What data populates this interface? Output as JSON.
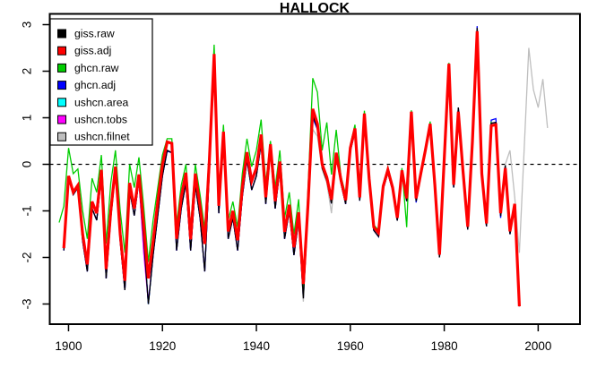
{
  "window": {
    "background": "#ffffff"
  },
  "chart_data": {
    "type": "line",
    "title": "HALLOCK",
    "xlabel": "",
    "ylabel": "",
    "xlim": [
      1896.0,
      2008.9
    ],
    "ylim": [
      -3.433,
      3.231
    ],
    "x_ticks": [
      1900,
      1920,
      1940,
      1960,
      1980,
      2000
    ],
    "y_ticks": [
      -3,
      -2,
      -1,
      0,
      1,
      2,
      3
    ],
    "grid": false,
    "zero_line": true,
    "zero_line_style": "dashed",
    "legend_position": "topleft",
    "frame_color": "#000000",
    "series": [
      {
        "name": "giss.raw",
        "color": "#000000",
        "line_width": 1.3,
        "z": 6,
        "start_year": 1899,
        "values": [
          -1.85,
          -0.3,
          -0.65,
          -0.5,
          -1.65,
          -2.3,
          -0.95,
          -1.2,
          -0.25,
          -2.45,
          -1.15,
          -0.15,
          -1.65,
          -2.7,
          -0.55,
          -1.1,
          -0.35,
          -1.6,
          -3.0,
          -1.95,
          -1.1,
          -0.25,
          0.3,
          0.25,
          -1.85,
          -0.95,
          -0.4,
          -1.85,
          -0.45,
          -1.15,
          -2.3,
          -0.1,
          2.1,
          -1.05,
          0.6,
          -1.6,
          -1.15,
          -1.85,
          -0.7,
          0.1,
          -0.55,
          -0.25,
          0.45,
          -0.85,
          0.28,
          -0.95,
          -0.1,
          -1.6,
          -1.0,
          -1.95,
          -1.2,
          -2.88,
          -0.95,
          1.05,
          0.78,
          -0.08,
          -0.36,
          -0.84,
          0.18,
          -0.4,
          -0.85,
          0.28,
          0.7,
          -0.78,
          1.02,
          -0.38,
          -1.42,
          -1.55,
          -0.53,
          -0.18,
          -0.56,
          -1.21,
          -0.19,
          -0.79,
          1.07,
          -0.79,
          -0.26,
          0.25,
          0.81,
          -0.5,
          -2.0,
          0.06,
          2.1,
          -0.5,
          1.22,
          -0.2,
          -1.4,
          0.42,
          2.93,
          -0.26,
          -1.33,
          0.88,
          0.9,
          -1.11,
          -0.02,
          -1.5,
          -0.91,
          -3.05
        ]
      },
      {
        "name": "giss.adj",
        "color": "#FF0000",
        "line_width": 3.2,
        "z": 7,
        "start_year": 1899,
        "values": [
          -1.8,
          -0.25,
          -0.6,
          -0.45,
          -1.5,
          -2.15,
          -0.8,
          -1.05,
          -0.12,
          -2.25,
          -1.0,
          -0.05,
          -1.5,
          -2.5,
          -0.4,
          -0.95,
          -0.22,
          -1.3,
          -2.45,
          -1.65,
          -0.8,
          0.0,
          0.48,
          0.45,
          -1.6,
          -0.7,
          -0.18,
          -1.61,
          -0.2,
          -0.9,
          -1.71,
          0.1,
          2.37,
          -0.89,
          0.7,
          -1.44,
          -1.0,
          -1.63,
          -0.5,
          0.26,
          -0.36,
          -0.08,
          0.64,
          -0.71,
          0.43,
          -0.79,
          0.06,
          -1.45,
          -0.87,
          -1.78,
          -1.03,
          -2.57,
          -0.83,
          1.19,
          0.87,
          0.0,
          -0.28,
          -0.76,
          0.25,
          -0.33,
          -0.77,
          0.35,
          0.77,
          -0.71,
          1.09,
          -0.31,
          -1.35,
          -1.47,
          -0.47,
          -0.12,
          -0.5,
          -1.15,
          -0.13,
          -0.73,
          1.13,
          -0.73,
          -0.2,
          0.31,
          0.87,
          -0.44,
          -1.94,
          0.12,
          2.16,
          -0.44,
          1.13,
          -0.14,
          -1.34,
          0.48,
          2.86,
          -0.2,
          -1.27,
          0.83,
          0.85,
          -1.05,
          -0.08,
          -1.44,
          -0.85,
          -3.05
        ]
      },
      {
        "name": "ghcn.raw",
        "color": "#00CD00",
        "line_width": 1.3,
        "z": 5,
        "start_year": 1898,
        "values": [
          -1.25,
          -0.9,
          0.35,
          -0.2,
          -0.1,
          -1.0,
          -1.6,
          -0.3,
          -0.6,
          0.2,
          -1.7,
          -0.4,
          0.3,
          -1.0,
          -1.9,
          0.0,
          -0.5,
          0.15,
          -0.9,
          -2.1,
          -1.2,
          -0.5,
          0.2,
          0.55,
          0.55,
          -1.3,
          -0.45,
          0.0,
          -1.35,
          0.0,
          -0.65,
          -1.4,
          0.3,
          2.57,
          -0.65,
          0.85,
          -1.2,
          -0.8,
          -1.35,
          -0.2,
          0.55,
          -0.05,
          0.3,
          0.96,
          -0.4,
          0.5,
          -0.5,
          0.3,
          -1.15,
          -0.6,
          -1.5,
          -0.75,
          -2.7,
          -0.5,
          1.85,
          1.55,
          0.3,
          0.9,
          -0.22,
          0.74,
          -0.25,
          -0.65,
          0.42,
          0.85,
          -0.62,
          1.15,
          -0.25,
          -1.3,
          -1.42,
          -0.42,
          -0.06,
          -0.45,
          -1.1,
          -0.08,
          -1.35,
          1.16,
          -0.7,
          -0.17,
          0.34,
          0.92,
          -0.41,
          -1.91,
          0.15,
          2.18,
          -0.41,
          1.16,
          -0.11,
          -1.31,
          0.51,
          2.88,
          -0.17,
          -1.24,
          0.92
        ]
      },
      {
        "name": "ghcn.adj",
        "color": "#0000FF",
        "line_width": 1.3,
        "z": 3,
        "start_year": 1899,
        "values": [
          -1.85,
          -0.3,
          -0.65,
          -0.5,
          -1.65,
          -2.3,
          -0.95,
          -1.2,
          -0.25,
          -2.45,
          -1.15,
          -0.15,
          -1.65,
          -2.7,
          -0.55,
          -1.1,
          -0.35,
          -1.6,
          -3.0,
          -1.95,
          -1.1,
          -0.25,
          0.28,
          0.25,
          -1.85,
          -0.95,
          -0.4,
          -1.85,
          -0.45,
          -1.15,
          -2.3,
          -0.1,
          2.1,
          -1.05,
          0.6,
          -1.6,
          -1.15,
          -1.85,
          -0.7,
          0.1,
          -0.55,
          -0.25,
          0.45,
          -0.85,
          0.28,
          -0.95,
          -0.1,
          -1.6,
          -1.0,
          -1.95,
          -1.2,
          -2.88,
          -0.95,
          1.0,
          0.75,
          -0.08,
          -0.36,
          -0.84,
          0.18,
          -0.4,
          -0.85,
          0.28,
          0.7,
          -0.78,
          1.02,
          -0.38,
          -1.42,
          -1.55,
          -0.53,
          -0.18,
          -0.56,
          -1.21,
          -0.19,
          -0.79,
          1.07,
          -0.82,
          -0.26,
          0.25,
          0.81,
          -0.5,
          -2.0,
          0.06,
          2.1,
          -0.5,
          1.22,
          -0.2,
          -1.4,
          0.42,
          2.97,
          -0.26,
          -1.33,
          0.95,
          0.98,
          -1.15,
          -0.02,
          -1.5,
          -0.91,
          -3.05
        ]
      },
      {
        "name": "ushcn.area",
        "color": "#00FFFF",
        "line_width": 1.3,
        "z": 1,
        "start_year": 1899,
        "values": [
          -1.85,
          -0.3,
          -0.65,
          -0.5,
          -1.65,
          -2.3,
          -0.95,
          -1.2,
          -0.25,
          -2.45,
          -1.15,
          -0.15,
          -1.65,
          -2.7,
          -0.55,
          -1.1,
          -0.35,
          -1.6,
          -3.0,
          -1.95,
          -1.1,
          -0.25,
          0.3,
          0.25,
          -1.85,
          -0.95,
          -0.4,
          -1.85,
          -0.45,
          -1.15,
          -2.3,
          -0.1,
          2.1,
          -1.05,
          0.6,
          -1.6,
          -1.15,
          -1.85,
          -0.7,
          0.1,
          -0.55,
          -0.25,
          0.45,
          -0.85,
          0.28,
          -0.95,
          -0.1,
          -1.6,
          -1.0,
          -1.95,
          -1.2,
          -2.88,
          -0.95,
          1.05,
          0.78,
          -0.08,
          -0.36,
          -0.84,
          0.18,
          -0.4,
          -0.85,
          0.28,
          0.7,
          -0.78,
          1.02,
          -0.38,
          -1.42,
          -1.55,
          -0.53,
          -0.18,
          -0.56,
          -1.21,
          -0.19,
          -0.79,
          1.07,
          -0.79,
          -0.26,
          0.25,
          0.81,
          -0.5,
          -2.0,
          0.06,
          2.1,
          -0.5,
          1.22,
          -0.2,
          -1.4,
          0.42,
          2.93,
          -0.26,
          -1.33,
          0.88,
          0.9,
          -1.11,
          -0.02,
          -1.5,
          -0.91
        ]
      },
      {
        "name": "ushcn.tobs",
        "color": "#FF00FF",
        "line_width": 1.3,
        "z": 2,
        "start_year": 1899,
        "values": [
          -1.85,
          -0.3,
          -0.65,
          -0.5,
          -1.65,
          -2.3,
          -0.95,
          -1.2,
          -0.25,
          -2.45,
          -1.15,
          -0.15,
          -1.65,
          -2.7,
          -0.55,
          -1.1,
          -0.35,
          -1.9,
          -2.95,
          -1.95,
          -1.1,
          -0.25,
          0.3,
          0.25,
          -1.85,
          -0.95,
          -0.4,
          -1.85,
          -0.45,
          -1.15,
          -2.3,
          -0.1,
          2.1,
          -1.05,
          0.6,
          -1.6,
          -1.15,
          -1.85,
          -0.7,
          0.1,
          -0.55,
          -0.25,
          0.45,
          -0.85,
          0.28,
          -0.95,
          -0.1,
          -1.6,
          -1.0,
          -1.95,
          -1.2,
          -2.88,
          -0.95,
          1.05,
          0.78,
          -0.08,
          -0.36,
          -0.84,
          0.18,
          -0.4,
          -0.85,
          0.28,
          0.7,
          -0.78,
          1.02,
          -0.38,
          -1.42,
          -1.55,
          -0.53,
          -0.18,
          -0.56,
          -1.21,
          -0.19,
          -0.79,
          1.07,
          -0.79,
          -0.26,
          0.25,
          0.81,
          -0.5,
          -2.0,
          0.06,
          2.1,
          -0.5,
          1.22,
          -0.2,
          -1.4,
          0.42,
          2.93,
          -0.26,
          -1.33,
          0.88,
          0.9,
          -1.11,
          -0.02,
          -1.5,
          -0.91
        ]
      },
      {
        "name": "ushcn.filnet",
        "color": "#BEBEBE",
        "line_width": 1.3,
        "z": 4,
        "start_year": 1899,
        "values": [
          -1.8,
          -0.25,
          -0.6,
          -0.45,
          -1.5,
          -2.15,
          -0.8,
          -1.05,
          -0.12,
          -2.25,
          -1.0,
          -0.05,
          -1.5,
          -2.5,
          -0.4,
          -0.95,
          -0.22,
          -1.3,
          -2.45,
          -1.65,
          -0.8,
          0.0,
          0.48,
          0.45,
          -1.6,
          -0.7,
          -0.18,
          -1.61,
          -0.2,
          -0.9,
          -1.71,
          0.1,
          2.37,
          -0.89,
          0.7,
          -1.44,
          -1.0,
          -1.63,
          -0.5,
          0.26,
          -0.36,
          -0.08,
          0.64,
          -0.71,
          0.43,
          -0.79,
          0.06,
          -1.45,
          -0.87,
          -1.78,
          -1.03,
          -2.95,
          -0.83,
          0.75,
          0.6,
          -0.1,
          -0.4,
          -1.05,
          0.15,
          -0.33,
          -0.77,
          0.35,
          0.77,
          -0.71,
          1.09,
          -0.31,
          -1.35,
          -1.47,
          -0.47,
          -0.12,
          -0.5,
          -1.15,
          -0.13,
          -0.73,
          1.13,
          -0.73,
          -0.2,
          0.31,
          0.87,
          -0.44,
          -1.94,
          0.12,
          2.16,
          -0.44,
          1.13,
          -0.14,
          -1.34,
          0.48,
          2.86,
          -0.2,
          -1.27,
          0.83,
          0.85,
          -0.9,
          0.0,
          0.3,
          -0.7,
          -1.9,
          0.3,
          2.5,
          1.6,
          1.22,
          1.83,
          0.78
        ]
      }
    ]
  }
}
